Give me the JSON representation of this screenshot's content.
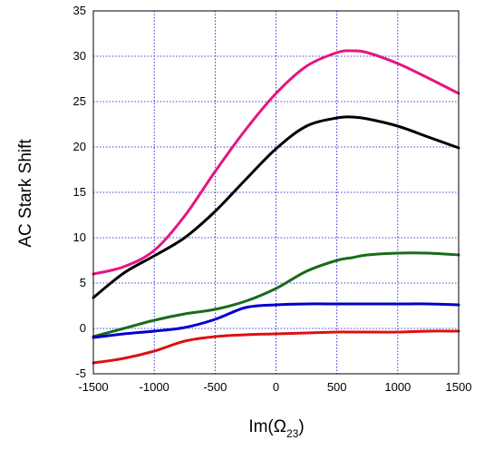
{
  "chart_data": {
    "type": "line",
    "title": "",
    "xlabel": "Im(Ω",
    "xlabel_subscript": "23",
    "xlabel_suffix": ")",
    "ylabel": "AC Stark Shift",
    "xlim": [
      -1500,
      1500
    ],
    "ylim": [
      -5,
      35
    ],
    "xticks": [
      -1500,
      -1000,
      -500,
      0,
      500,
      1000,
      1500
    ],
    "yticks": [
      -5,
      0,
      5,
      10,
      15,
      20,
      25,
      30,
      35
    ],
    "grid": true,
    "grid_color": "#0000cc",
    "x": [
      -1500,
      -1250,
      -1000,
      -750,
      -500,
      -250,
      0,
      250,
      500,
      625,
      750,
      1000,
      1250,
      1500
    ],
    "series": [
      {
        "color": "#e6147f",
        "values": [
          6.0,
          6.8,
          8.6,
          12.4,
          17.3,
          21.9,
          25.9,
          28.9,
          30.4,
          30.6,
          30.4,
          29.2,
          27.6,
          25.9
        ]
      },
      {
        "color": "#000000",
        "values": [
          3.4,
          6.1,
          8.0,
          10.0,
          12.9,
          16.4,
          19.8,
          22.3,
          23.2,
          23.3,
          23.1,
          22.3,
          21.1,
          19.9
        ]
      },
      {
        "color": "#1a6b1a",
        "values": [
          -0.9,
          0.0,
          0.9,
          1.6,
          2.1,
          3.0,
          4.4,
          6.3,
          7.5,
          7.8,
          8.1,
          8.3,
          8.3,
          8.1
        ]
      },
      {
        "color": "#0000cc",
        "values": [
          -1.0,
          -0.6,
          -0.3,
          0.1,
          1.0,
          2.3,
          2.6,
          2.7,
          2.7,
          2.7,
          2.7,
          2.7,
          2.7,
          2.6
        ]
      },
      {
        "color": "#dd1111",
        "values": [
          -3.8,
          -3.3,
          -2.5,
          -1.4,
          -0.9,
          -0.7,
          -0.6,
          -0.5,
          -0.4,
          -0.4,
          -0.4,
          -0.4,
          -0.3,
          -0.3
        ]
      }
    ]
  }
}
